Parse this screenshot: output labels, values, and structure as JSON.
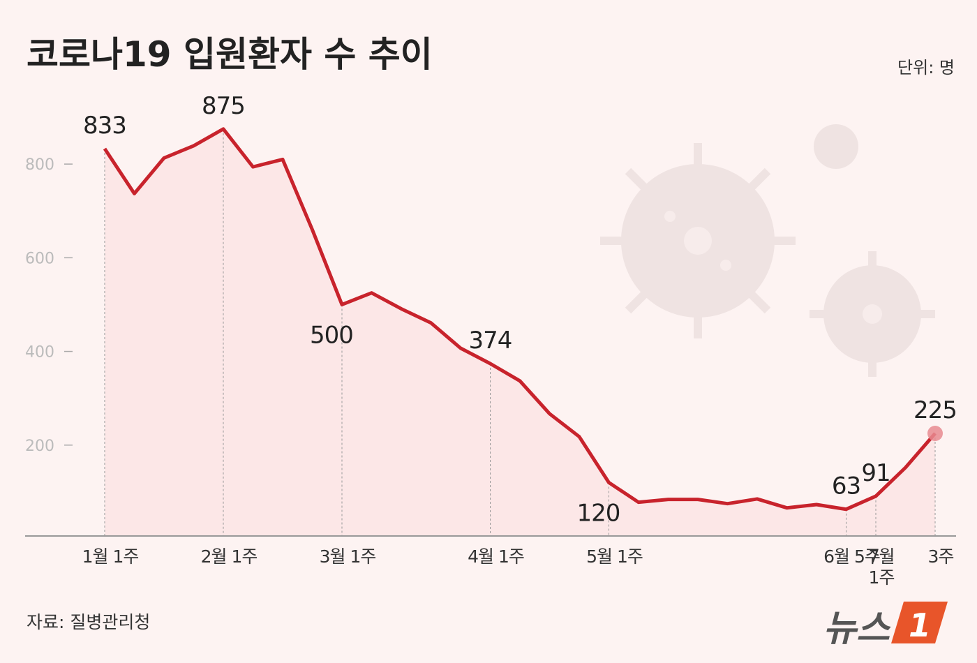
{
  "chart_data": {
    "type": "line",
    "title": "코로나19 입원환자 수 추이",
    "unit": "단위: 명",
    "source": "자료: 질병관리청",
    "logo": {
      "text": "뉴스",
      "mark": "1"
    },
    "categories": [
      "1월 1주",
      null,
      null,
      null,
      "2월 1주",
      null,
      null,
      null,
      "3월 1주",
      null,
      null,
      null,
      null,
      "4월 1주",
      null,
      null,
      null,
      "5월 1주",
      null,
      null,
      null,
      null,
      null,
      null,
      null,
      "6월 5주",
      "7월 1주",
      null,
      "3주"
    ],
    "series": [
      {
        "name": "입원환자",
        "color": "#c8232c",
        "values": [
          833,
          737,
          813,
          839,
          875,
          794,
          810,
          660,
          500,
          525,
          491,
          461,
          407,
          374,
          337,
          267,
          218,
          120,
          78,
          84,
          84,
          75,
          85,
          66,
          73,
          63,
          91,
          152,
          225
        ]
      }
    ],
    "ylim": [
      0,
      900
    ],
    "yticks": [
      200,
      400,
      600,
      800
    ]
  }
}
